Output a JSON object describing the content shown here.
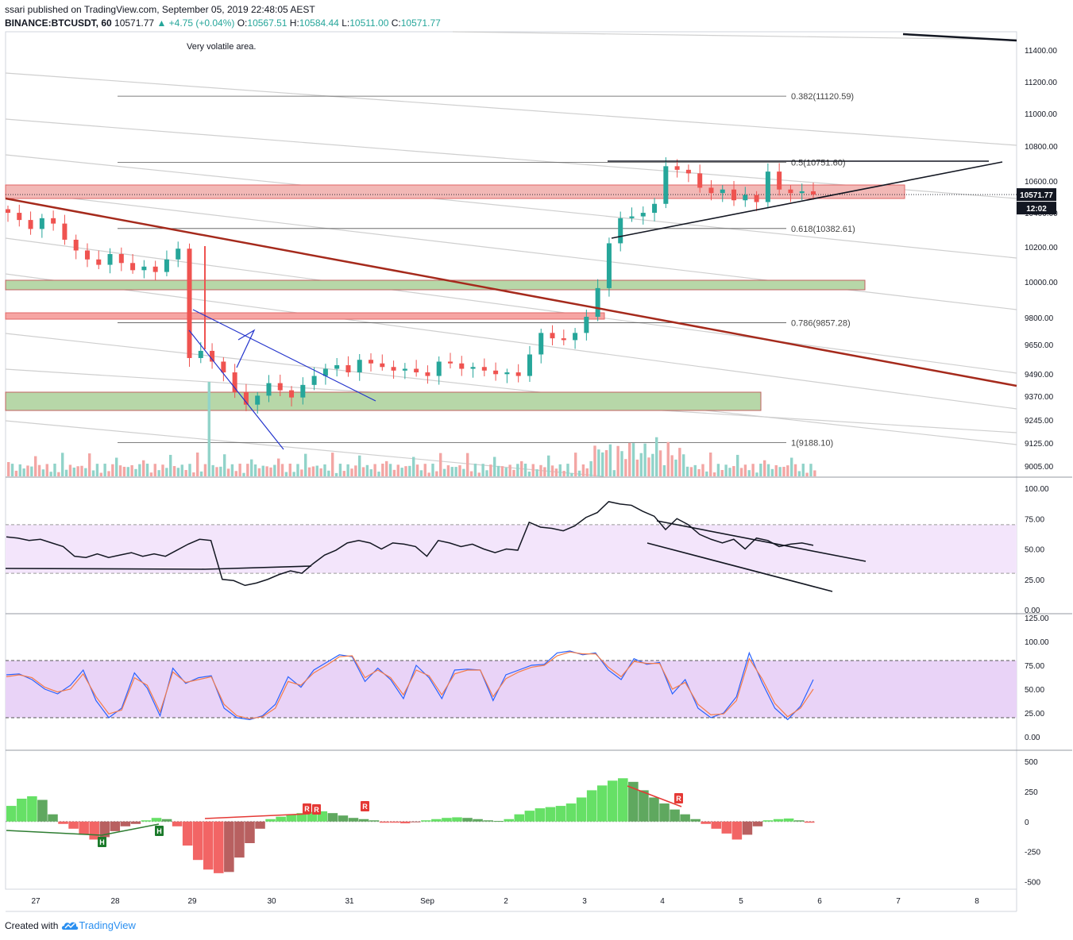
{
  "header": {
    "line1": "ssari published on TradingView.com, September 05, 2019 22:48:05 AEST",
    "symbol": "BINANCE:BTCUSDT, 60",
    "last": "10571.77",
    "change": "▲ +4.75 (+0.04%)",
    "o_label": "O:",
    "o": "10567.51",
    "h_label": "H:",
    "h": "10584.44",
    "l_label": "L:",
    "l": "10511.00",
    "c_label": "C:",
    "c": "10571.77"
  },
  "footer": {
    "created": "Created with",
    "brand": "TradingView"
  },
  "colors": {
    "up": "#26a69a",
    "down": "#ef5350",
    "trend": "#a52a1c",
    "red_zone": "#f2b8b6",
    "green_zone": "#b7d7a8",
    "wedge": "#2233cc",
    "rsi_band": "#f3e5fb",
    "stoch_band": "#e9d3f7"
  },
  "chart_data": [
    {
      "type": "candlestick",
      "title": "",
      "annotation": "Very volatile area.",
      "x_ticks": [
        "27",
        "28",
        "29",
        "30",
        "31",
        "Sep",
        "2",
        "3",
        "4",
        "5",
        "6",
        "7",
        "8"
      ],
      "y_ticks": [
        "11400.00",
        "11200.00",
        "11000.00",
        "10800.00",
        "10600.00",
        "10400.00",
        "10200.00",
        "10000.00",
        "9800.00",
        "9650.00",
        "9490.00",
        "9370.00",
        "9245.00",
        "9125.00",
        "9005.00"
      ],
      "ylim": [
        9000,
        11480
      ],
      "last_price": "10571.77",
      "countdown": "12:02",
      "fib_levels": [
        {
          "label": "0.382(11120.59)",
          "value": 11120.59
        },
        {
          "label": "0.5(10751.60)",
          "value": 10751.6
        },
        {
          "label": "0.618(10382.61)",
          "value": 10382.61
        },
        {
          "label": "0.786(9857.28)",
          "value": 9857.28
        },
        {
          "label": "1(9188.10)",
          "value": 9188.1
        }
      ],
      "series": [
        {
          "name": "",
          "close": [
            10470,
            10430,
            10380,
            10440,
            10410,
            10320,
            10260,
            10210,
            10180,
            10240,
            10190,
            10150,
            10170,
            10140,
            10210,
            10270,
            9660,
            9700,
            9640,
            9580,
            9470,
            9400,
            9450,
            9520,
            9480,
            9440,
            9510,
            9560,
            9600,
            9620,
            9580,
            9650,
            9630,
            9610,
            9590,
            9600,
            9580,
            9560,
            9640,
            9630,
            9600,
            9610,
            9590,
            9570,
            9580,
            9560,
            9680,
            9800,
            9770,
            9760,
            9800,
            9890,
            10050,
            10300,
            10440,
            10450,
            10470,
            10520,
            10730,
            10710,
            10690,
            10610,
            10580,
            10600,
            10540,
            10570,
            10530,
            10700,
            10600,
            10580,
            10590,
            10572
          ]
        }
      ]
    },
    {
      "type": "line",
      "title": "",
      "y_ticks": [
        "100.00",
        "75.00",
        "50.00",
        "25.00",
        "0.00"
      ],
      "ylim": [
        0,
        100
      ],
      "bands": [
        30,
        70
      ],
      "series": [
        {
          "name": "",
          "values": [
            60,
            59,
            57,
            58,
            55,
            52,
            44,
            43,
            46,
            43,
            45,
            47,
            44,
            46,
            44,
            49,
            54,
            58,
            57,
            25,
            24,
            20,
            22,
            25,
            29,
            32,
            30,
            38,
            45,
            49,
            55,
            57,
            55,
            50,
            55,
            54,
            52,
            44,
            57,
            55,
            52,
            54,
            50,
            47,
            50,
            49,
            72,
            68,
            67,
            65,
            69,
            76,
            80,
            89,
            87,
            86,
            81,
            77,
            66,
            75,
            70,
            62,
            58,
            55,
            58,
            50,
            59,
            57,
            52,
            54,
            55,
            53
          ]
        }
      ]
    },
    {
      "type": "line",
      "title": "",
      "y_ticks": [
        "125.00",
        "100.00",
        "75.00",
        "50.00",
        "25.00",
        "0.00"
      ],
      "ylim": [
        0,
        125
      ],
      "bands": [
        20,
        80
      ],
      "series": [
        {
          "name": "",
          "values": [
            65,
            66,
            60,
            50,
            45,
            54,
            70,
            38,
            20,
            30,
            67,
            51,
            22,
            72,
            56,
            62,
            64,
            30,
            20,
            18,
            22,
            34,
            63,
            52,
            70,
            78,
            86,
            84,
            58,
            72,
            60,
            40,
            75,
            62,
            40,
            70,
            71,
            70,
            38,
            65,
            70,
            75,
            76,
            88,
            90,
            86,
            88,
            70,
            60,
            82,
            76,
            78,
            45,
            60,
            30,
            20,
            25,
            42,
            88,
            57,
            30,
            18,
            32,
            60
          ]
        },
        {
          "name": "",
          "values": [
            63,
            65,
            62,
            52,
            47,
            50,
            66,
            42,
            24,
            28,
            62,
            54,
            26,
            68,
            57,
            60,
            63,
            34,
            22,
            19,
            21,
            30,
            58,
            54,
            67,
            75,
            84,
            85,
            62,
            70,
            62,
            44,
            70,
            64,
            44,
            66,
            70,
            70,
            42,
            61,
            68,
            73,
            75,
            85,
            89,
            87,
            87,
            73,
            63,
            79,
            77,
            77,
            50,
            57,
            34,
            23,
            24,
            38,
            82,
            61,
            35,
            21,
            30,
            50
          ]
        }
      ]
    },
    {
      "type": "bar",
      "title": "",
      "y_ticks": [
        "500",
        "250",
        "0",
        "-250",
        "-500"
      ],
      "ylim": [
        -550,
        560
      ],
      "divergence_labels": [
        "H",
        "R",
        "H",
        "R",
        "R",
        "R"
      ],
      "series": [
        {
          "name": "",
          "values": [
            130,
            190,
            210,
            180,
            60,
            -20,
            -60,
            -110,
            -150,
            -130,
            -80,
            -40,
            -20,
            10,
            30,
            20,
            -40,
            -200,
            -320,
            -400,
            -430,
            -420,
            -300,
            -180,
            -60,
            20,
            40,
            55,
            70,
            80,
            85,
            70,
            50,
            30,
            20,
            10,
            -10,
            -10,
            -15,
            -5,
            10,
            20,
            30,
            35,
            30,
            20,
            10,
            5,
            20,
            60,
            90,
            110,
            120,
            130,
            150,
            200,
            260,
            300,
            340,
            360,
            330,
            260,
            200,
            150,
            100,
            60,
            20,
            -20,
            -60,
            -100,
            -150,
            -110,
            -40,
            10,
            20,
            25,
            10,
            -10
          ]
        }
      ]
    }
  ]
}
